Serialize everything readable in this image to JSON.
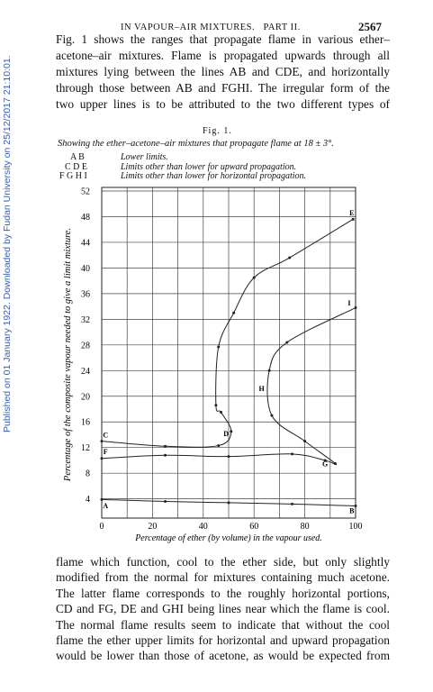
{
  "header": {
    "running_title": "IN VAPOUR–AIR MIXTURES.   PART II.",
    "page_number": "2567"
  },
  "watermark": "Published on 01 January 1922. Downloaded by Fudan University on 25/12/2017 21:10:01.",
  "paragraph_1": [
    "Fig. 1 shows the ranges that propagate flame in various ether–",
    "acetone–air mixtures.  Flame is propagated upwards through all",
    "mixtures lying between the lines AB and CDE, and horizontally",
    "through those between AB and FGHI.  The irregular form of the",
    "two upper lines is to be attributed to the two different types of"
  ],
  "figure": {
    "label": "Fig. 1.",
    "caption": "Showing the ether–acetone–air mixtures that propagate flame at 18 ± 3°.",
    "key": [
      {
        "letters": "A B",
        "text": "Lower limits."
      },
      {
        "letters": "C D E",
        "text": "Limits other than lower for upward propagation."
      },
      {
        "letters": "F G H I",
        "text": "Limits other than lower for horizontal propagation."
      }
    ]
  },
  "chart_data": {
    "type": "line",
    "x_label": "Percentage of ether (by volume) in the vapour used.",
    "y_label": "Percentage of the composite vapour needed to give a limit mixture.",
    "xlim": [
      0,
      100
    ],
    "ylim": [
      1,
      52
    ],
    "xticks": [
      0,
      {
        "value": 10,
        "label": null
      },
      20,
      {
        "value": 30,
        "label": null
      },
      40,
      {
        "value": 50,
        "label": null
      },
      60,
      {
        "value": 70,
        "label": null
      },
      80,
      {
        "value": 90,
        "label": null
      },
      100
    ],
    "yticks": [
      4,
      8,
      12,
      16,
      20,
      24,
      28,
      32,
      36,
      40,
      44,
      48,
      52
    ],
    "grid": true,
    "series": [
      {
        "name": "AB",
        "color": "#222",
        "x": [
          0,
          25,
          50,
          75,
          100
        ],
        "values": [
          3.9,
          3.6,
          3.4,
          3.2,
          2.9
        ]
      },
      {
        "name": "CDE",
        "color": "#222",
        "x": [
          0,
          25,
          46,
          51,
          47,
          45,
          46,
          52,
          60,
          74,
          99
        ],
        "values": [
          13,
          12.2,
          12.3,
          14.5,
          17.5,
          18.6,
          27.7,
          33,
          38.5,
          41.6,
          47.6
        ]
      },
      {
        "name": "FGHI",
        "color": "#222",
        "x": [
          0,
          25,
          50,
          75,
          88,
          92,
          80,
          67,
          66,
          73,
          100
        ],
        "values": [
          10.3,
          10.8,
          10.6,
          11,
          10,
          9.5,
          13,
          17,
          24,
          28.4,
          33.8
        ]
      }
    ],
    "annotations": [
      {
        "text": "A",
        "x": 1.5,
        "y": 3
      },
      {
        "text": "B",
        "x": 98.5,
        "y": 2.2
      },
      {
        "text": "C",
        "x": 1.5,
        "y": 14
      },
      {
        "text": "D",
        "x": 49,
        "y": 14.2
      },
      {
        "text": "E",
        "x": 98.5,
        "y": 48.6
      },
      {
        "text": "F",
        "x": 1.5,
        "y": 11.4
      },
      {
        "text": "G",
        "x": 88,
        "y": 9.5
      },
      {
        "text": "H",
        "x": 63,
        "y": 21.2
      },
      {
        "text": "I",
        "x": 97.5,
        "y": 34.6
      }
    ]
  },
  "paragraph_2": [
    "flame which function, cool to the ether side, but only slightly",
    "modified from the normal for mixtures containing much acetone.",
    "The latter flame corresponds to the roughly horizontal portions,",
    "CD and FG, DE and GHI being lines near which the flame is cool.",
    "The normal flame results seem to indicate that without the cool",
    "flame the ether upper limits for horizontal and upward propagation",
    "would be lower than those of acetone, as would be expected from"
  ]
}
